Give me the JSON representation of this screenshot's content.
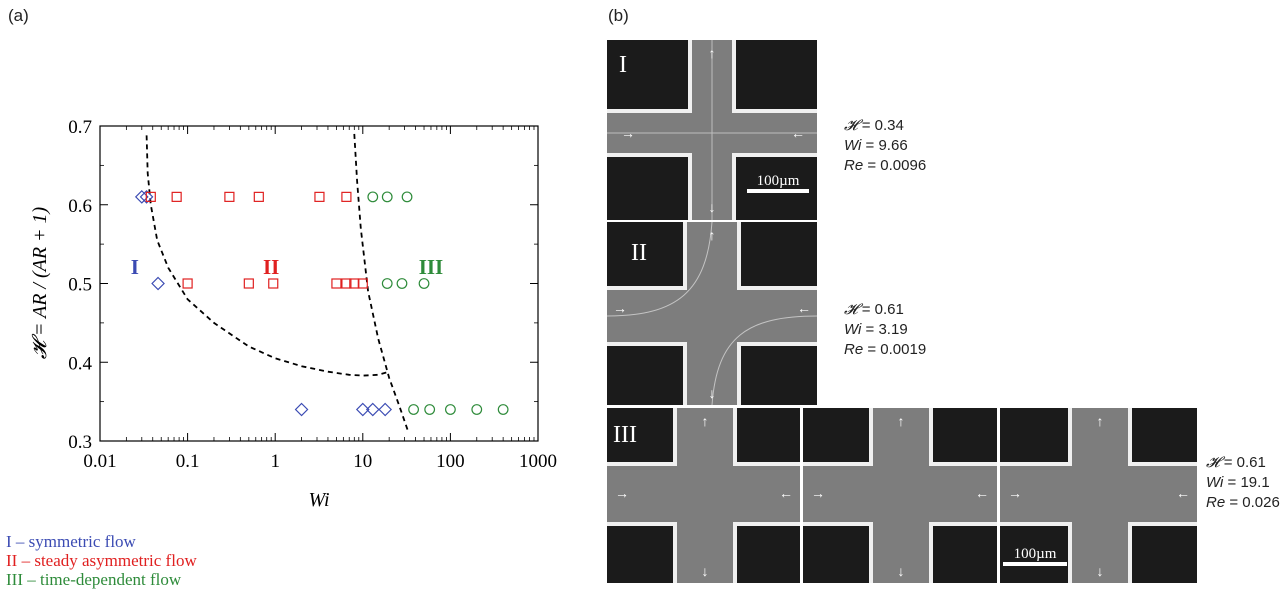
{
  "panel_a_label": "(a)",
  "panel_b_label": "(b)",
  "chart_data": {
    "type": "scatter",
    "x_scale": "log",
    "xlim": [
      0.01,
      1000
    ],
    "ylim": [
      0.3,
      0.7
    ],
    "x_ticks": [
      "0.01",
      "0.1",
      "1",
      "10",
      "100",
      "1000"
    ],
    "y_ticks": [
      "0.3",
      "0.4",
      "0.5",
      "0.6",
      "0.7"
    ],
    "xlabel": "Wi",
    "ylabel": "𝓗 = AR / (AR + 1)",
    "grid": false,
    "series": [
      {
        "name": "I – symmetric flow",
        "marker": "diamond",
        "color": "#3b4bb3",
        "x": [
          0.03,
          0.034,
          0.046,
          2.0,
          10.0,
          13.0,
          18.0
        ],
        "y": [
          0.61,
          0.61,
          0.5,
          0.34,
          0.34,
          0.34,
          0.34
        ]
      },
      {
        "name": "II – steady asymmetric flow",
        "marker": "square",
        "color": "#e02020",
        "x": [
          0.038,
          0.075,
          0.1,
          0.3,
          0.65,
          3.2,
          6.5,
          0.5,
          0.95,
          5.0,
          6.5,
          8.0,
          10.0
        ],
        "y": [
          0.61,
          0.61,
          0.5,
          0.61,
          0.61,
          0.61,
          0.61,
          0.5,
          0.5,
          0.5,
          0.5,
          0.5,
          0.5
        ]
      },
      {
        "name": "III – time-dependent flow",
        "marker": "circle",
        "color": "#2e8b3a",
        "x": [
          13.0,
          19.0,
          32.0,
          19.0,
          28.0,
          50.0,
          38.0,
          58.0,
          100.0,
          200.0,
          400.0
        ],
        "y": [
          0.61,
          0.61,
          0.61,
          0.5,
          0.5,
          0.5,
          0.34,
          0.34,
          0.34,
          0.34,
          0.34
        ]
      }
    ],
    "boundary_lines": [
      {
        "x": [
          0.034,
          0.035,
          0.038,
          0.045,
          0.06,
          0.1,
          0.2,
          0.5,
          1.0,
          2.0,
          4.0,
          7.0,
          10.0,
          15.0,
          20.0
        ],
        "y": [
          0.688,
          0.64,
          0.6,
          0.555,
          0.52,
          0.48,
          0.45,
          0.42,
          0.405,
          0.395,
          0.388,
          0.384,
          0.383,
          0.384,
          0.388
        ]
      },
      {
        "x": [
          8.0,
          8.6,
          9.5,
          11.5,
          15.0,
          20.0,
          26.0,
          33.0
        ],
        "y": [
          0.69,
          0.63,
          0.57,
          0.49,
          0.43,
          0.38,
          0.345,
          0.312
        ]
      }
    ],
    "annotations": [
      {
        "text": "I",
        "x": 0.025,
        "y": 0.52,
        "color": "#3b4bb3"
      },
      {
        "text": "II",
        "x": 0.9,
        "y": 0.52,
        "color": "#e02020"
      },
      {
        "text": "III",
        "x": 60,
        "y": 0.52,
        "color": "#2e8b3a"
      }
    ]
  },
  "legend": [
    {
      "text": "I – symmetric flow",
      "color": "#3b4bb3"
    },
    {
      "text": "II – steady asymmetric flow",
      "color": "#e02020"
    },
    {
      "text": "III – time-dependent flow",
      "color": "#2e8b3a"
    }
  ],
  "images": [
    {
      "roman": "I",
      "scale_bar": "100µm",
      "H": "0.34",
      "Wi": "9.66",
      "Re": "0.0096"
    },
    {
      "roman": "II",
      "scale_bar": "",
      "H": "0.61",
      "Wi": "3.19",
      "Re": "0.0019"
    },
    {
      "roman": "III",
      "scale_bar": "100µm",
      "H": "0.61",
      "Wi": "19.1",
      "Re": "0.026"
    }
  ],
  "param_labels": {
    "H": "𝓗",
    "Wi": "Wi",
    "Re": "Re",
    "eq": " = "
  },
  "colors": {
    "axis": "#000000",
    "image_bg": "#1b1b1b",
    "channel": "#8a8a8a",
    "wall": "#f0f0f0"
  }
}
